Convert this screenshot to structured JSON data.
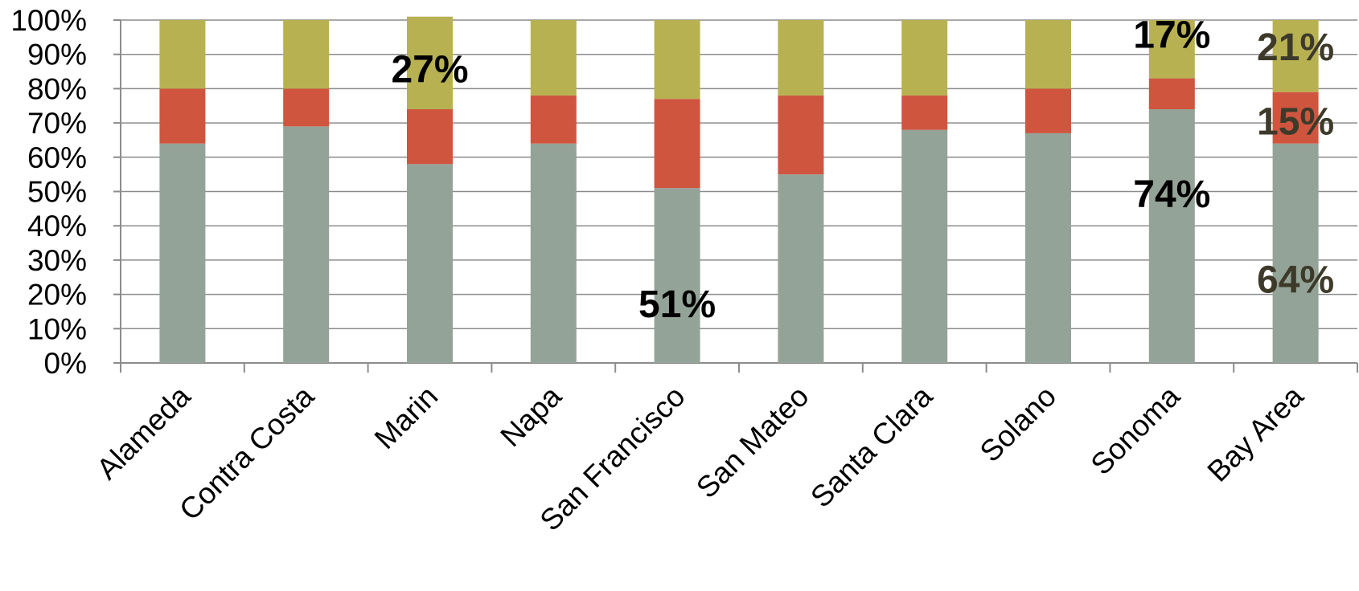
{
  "chart_data": {
    "type": "bar",
    "stacked": true,
    "percent_stacked": true,
    "categories": [
      "Alameda",
      "Contra Costa",
      "Marin",
      "Napa",
      "San Francisco",
      "San Mateo",
      "Santa Clara",
      "Solano",
      "Sonoma",
      "Bay Area"
    ],
    "series": [
      {
        "color": "#94a398",
        "values": [
          64,
          69,
          58,
          64,
          51,
          55,
          68,
          67,
          74,
          64
        ]
      },
      {
        "color": "#cf553f",
        "values": [
          16,
          11,
          16,
          14,
          26,
          23,
          10,
          13,
          9,
          15
        ]
      },
      {
        "color": "#b8b152",
        "values": [
          20,
          20,
          27,
          22,
          23,
          22,
          22,
          20,
          17,
          21
        ]
      }
    ],
    "ylim": [
      0,
      100
    ],
    "yticks": [
      0,
      10,
      20,
      30,
      40,
      50,
      60,
      70,
      80,
      90,
      100
    ],
    "ytick_labels": [
      "0%",
      "10%",
      "20%",
      "30%",
      "40%",
      "50%",
      "60%",
      "70%",
      "80%",
      "90%",
      "100%"
    ],
    "grid": true,
    "legend": "none",
    "title": "",
    "xlabel": "",
    "ylabel": "",
    "data_labels": [
      {
        "category": "Marin",
        "series": 2,
        "text": "27%",
        "color": "#000000"
      },
      {
        "category": "San Francisco",
        "series": 0,
        "text": "51%",
        "color": "#000000"
      },
      {
        "category": "Sonoma",
        "series": 2,
        "text": "17%",
        "color": "#000000"
      },
      {
        "category": "Sonoma",
        "series": 0,
        "text": "74%",
        "color": "#000000"
      },
      {
        "category": "Bay Area",
        "series": 2,
        "text": "21%",
        "color": "#3d3a2a"
      },
      {
        "category": "Bay Area",
        "series": 1,
        "text": "15%",
        "color": "#3d3a2a"
      },
      {
        "category": "Bay Area",
        "series": 0,
        "text": "64%",
        "color": "#3d3a2a"
      }
    ]
  }
}
